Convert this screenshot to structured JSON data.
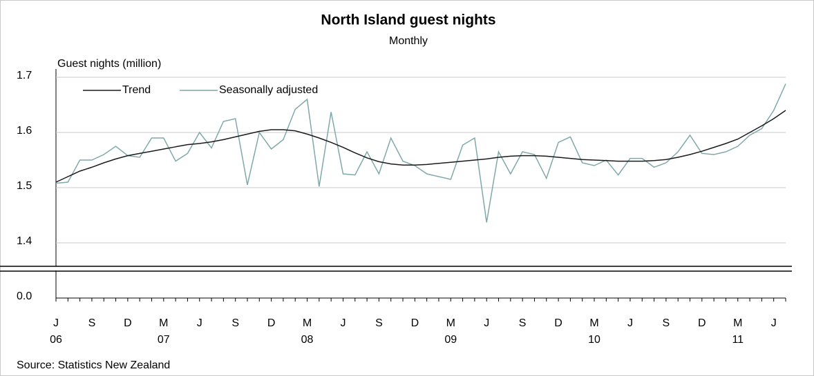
{
  "chart_data": {
    "type": "line",
    "title": "North Island guest nights",
    "subtitle": "Monthly",
    "y_label": "Guest nights (million)",
    "source": "Source: Statistics New Zealand",
    "categories": [
      "J",
      null,
      null,
      "S",
      null,
      null,
      "D",
      null,
      null,
      "M",
      null,
      null,
      "J",
      null,
      null,
      "S",
      null,
      null,
      "D",
      null,
      null,
      "M",
      null,
      null,
      "J",
      null,
      null,
      "S",
      null,
      null,
      "D",
      null,
      null,
      "M",
      null,
      null,
      "J",
      null,
      null,
      "S",
      null,
      null,
      "D",
      null,
      null,
      "M",
      null,
      null,
      "J",
      null,
      null,
      "S",
      null,
      null,
      "D",
      null,
      null,
      "M",
      null,
      null,
      "J",
      null
    ],
    "category_years": [
      "06",
      null,
      null,
      null,
      null,
      null,
      null,
      null,
      null,
      "07",
      null,
      null,
      null,
      null,
      null,
      null,
      null,
      null,
      null,
      null,
      null,
      "08",
      null,
      null,
      null,
      null,
      null,
      null,
      null,
      null,
      null,
      null,
      null,
      "09",
      null,
      null,
      null,
      null,
      null,
      null,
      null,
      null,
      null,
      null,
      null,
      "10",
      null,
      null,
      null,
      null,
      null,
      null,
      null,
      null,
      null,
      null,
      null,
      "11",
      null,
      null,
      null,
      null
    ],
    "series": [
      {
        "name": "Trend",
        "color": "#1a1a1a",
        "values": [
          1.51,
          1.52,
          1.53,
          1.537,
          1.545,
          1.552,
          1.558,
          1.562,
          1.566,
          1.57,
          1.574,
          1.578,
          1.58,
          1.583,
          1.587,
          1.592,
          1.597,
          1.602,
          1.605,
          1.605,
          1.603,
          1.597,
          1.59,
          1.582,
          1.573,
          1.563,
          1.554,
          1.547,
          1.543,
          1.541,
          1.541,
          1.542,
          1.544,
          1.546,
          1.548,
          1.55,
          1.552,
          1.555,
          1.557,
          1.558,
          1.558,
          1.557,
          1.555,
          1.553,
          1.551,
          1.55,
          1.549,
          1.548,
          1.548,
          1.548,
          1.549,
          1.551,
          1.555,
          1.56,
          1.566,
          1.573,
          1.58,
          1.588,
          1.6,
          1.612,
          1.625,
          1.64
        ]
      },
      {
        "name": "Seasonally adjusted",
        "color": "#7fa9a8",
        "values": [
          1.508,
          1.51,
          1.55,
          1.55,
          1.56,
          1.575,
          1.558,
          1.555,
          1.59,
          1.59,
          1.548,
          1.562,
          1.6,
          1.572,
          1.62,
          1.625,
          1.505,
          1.6,
          1.57,
          1.587,
          1.642,
          1.66,
          1.502,
          1.637,
          1.525,
          1.523,
          1.565,
          1.525,
          1.59,
          1.548,
          1.54,
          1.525,
          1.52,
          1.515,
          1.577,
          1.59,
          1.437,
          1.565,
          1.525,
          1.565,
          1.56,
          1.517,
          1.582,
          1.592,
          1.545,
          1.54,
          1.55,
          1.523,
          1.553,
          1.553,
          1.537,
          1.545,
          1.565,
          1.595,
          1.562,
          1.56,
          1.565,
          1.575,
          1.595,
          1.607,
          1.64,
          1.688
        ]
      }
    ],
    "ylim": [
      1.36,
      1.7
    ],
    "yticks": [
      {
        "value": 0,
        "label": "0.0"
      },
      1.4,
      1.5,
      1.6,
      1.7
    ],
    "grid": true,
    "legend": "top-left"
  }
}
